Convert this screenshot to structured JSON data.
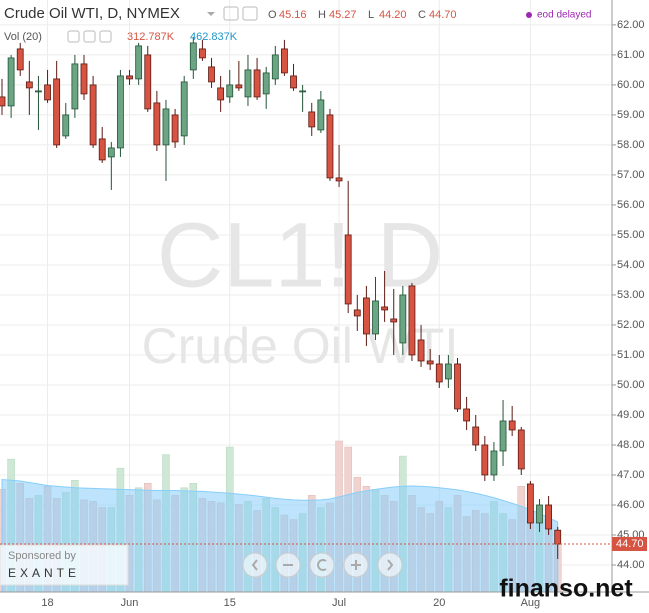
{
  "chart_data": {
    "type": "candlestick",
    "title": "Crude Oil WTI, D, NYMEX",
    "ohlc_legend": [
      {
        "key": "O",
        "value": "45.16"
      },
      {
        "key": "H",
        "value": "45.27"
      },
      {
        "key": "L",
        "value": "44.20"
      },
      {
        "key": "C",
        "value": "44.70"
      }
    ],
    "status": "eod delayed",
    "volume_legend": {
      "name": "Vol (20)",
      "volume": "312.787K",
      "average": "462.837K"
    },
    "watermark": {
      "symbol": "CL1! D",
      "name": "Crude Oil WTI"
    },
    "last_price_label": "44.70",
    "sponsor": {
      "caption": "Sponsored by",
      "name": "EXANTE"
    },
    "site_watermark": "finanso.net",
    "categories": [
      null,
      null,
      null,
      null,
      null,
      "18",
      null,
      null,
      null,
      null,
      null,
      null,
      null,
      null,
      "Jun",
      null,
      null,
      null,
      null,
      null,
      null,
      null,
      null,
      null,
      null,
      "15",
      null,
      null,
      null,
      null,
      null,
      null,
      null,
      null,
      null,
      null,
      null,
      "Jul",
      null,
      null,
      null,
      null,
      null,
      null,
      null,
      null,
      null,
      null,
      "20",
      null,
      null,
      null,
      null,
      null,
      null,
      null,
      null,
      null,
      "Aug",
      null,
      null,
      null
    ],
    "open": [
      59.6,
      59.3,
      61.2,
      60.1,
      59.8,
      60.0,
      60.2,
      58.3,
      59.2,
      60.7,
      60.0,
      58.2,
      57.6,
      57.9,
      60.3,
      60.2,
      61.0,
      59.4,
      58.0,
      59.0,
      58.3,
      60.5,
      61.2,
      60.6,
      59.9,
      59.6,
      60.0,
      59.6,
      60.5,
      59.7,
      60.2,
      61.2,
      60.3,
      59.8,
      59.1,
      58.5,
      59.0,
      56.9,
      55.0,
      52.5,
      52.9,
      51.7,
      52.6,
      52.2,
      51.4,
      53.3,
      51.5,
      50.8,
      50.7,
      50.2,
      50.7,
      49.2,
      48.6,
      48.0,
      47.0,
      47.8,
      48.8,
      48.5,
      46.7,
      45.4,
      46.0,
      45.16
    ],
    "high": [
      60.2,
      61.0,
      61.4,
      60.8,
      60.3,
      60.5,
      60.8,
      59.4,
      61.0,
      61.0,
      60.3,
      58.6,
      58.1,
      60.5,
      60.5,
      61.4,
      61.3,
      59.8,
      59.5,
      59.2,
      60.3,
      61.6,
      61.5,
      60.9,
      60.3,
      60.5,
      60.8,
      61.0,
      60.9,
      60.6,
      61.3,
      61.5,
      60.7,
      60.0,
      59.4,
      59.8,
      59.2,
      58.0,
      56.8,
      53.0,
      53.3,
      53.6,
      53.8,
      53.2,
      53.3,
      53.4,
      52.0,
      51.2,
      51.0,
      51.0,
      50.9,
      49.6,
      49.0,
      48.3,
      48.1,
      49.5,
      49.3,
      48.6,
      46.8,
      46.2,
      46.3,
      45.27
    ],
    "low": [
      59.0,
      58.9,
      60.3,
      59.0,
      58.5,
      59.4,
      57.9,
      58.2,
      58.9,
      59.5,
      57.9,
      57.4,
      56.5,
      57.6,
      60.0,
      60.0,
      59.1,
      57.8,
      56.8,
      57.9,
      58.0,
      60.2,
      60.8,
      59.9,
      59.1,
      59.4,
      59.8,
      59.3,
      59.5,
      59.2,
      60.0,
      60.3,
      59.8,
      59.1,
      58.3,
      58.4,
      56.8,
      56.6,
      52.4,
      51.8,
      51.3,
      51.5,
      52.1,
      51.0,
      51.0,
      50.8,
      50.6,
      50.5,
      49.9,
      49.9,
      49.1,
      48.5,
      47.8,
      46.8,
      46.8,
      47.3,
      48.3,
      47.0,
      45.2,
      45.1,
      45.0,
      44.2
    ],
    "close": [
      59.3,
      60.9,
      60.5,
      59.9,
      59.8,
      59.5,
      58.0,
      59.0,
      60.7,
      59.7,
      58.0,
      57.5,
      57.9,
      60.3,
      60.2,
      61.3,
      59.2,
      58.0,
      59.2,
      58.1,
      60.1,
      61.4,
      60.9,
      60.1,
      59.5,
      60.0,
      59.9,
      60.5,
      59.6,
      60.4,
      61.0,
      60.4,
      59.9,
      59.8,
      58.6,
      59.5,
      56.9,
      56.8,
      52.7,
      52.3,
      51.7,
      52.8,
      52.5,
      52.1,
      53.0,
      51.0,
      50.8,
      50.7,
      50.1,
      50.7,
      49.2,
      48.8,
      48.0,
      47.0,
      47.8,
      48.8,
      48.5,
      47.2,
      45.4,
      46.0,
      45.2,
      44.7
    ],
    "volume": [
      680,
      880,
      720,
      620,
      640,
      700,
      620,
      660,
      740,
      610,
      600,
      560,
      560,
      820,
      640,
      690,
      720,
      610,
      910,
      640,
      690,
      720,
      620,
      600,
      590,
      960,
      580,
      600,
      540,
      620,
      560,
      510,
      480,
      520,
      640,
      560,
      590,
      1000,
      960,
      760,
      700,
      680,
      640,
      600,
      900,
      640,
      560,
      520,
      600,
      560,
      640,
      500,
      540,
      520,
      600,
      520,
      480,
      700,
      480,
      470,
      480,
      312.787
    ],
    "volume_ma": [
      745,
      740,
      735,
      725,
      715,
      705,
      700,
      695,
      690,
      688,
      686,
      684,
      682,
      680,
      678,
      676,
      674,
      672,
      672,
      672,
      670,
      668,
      666,
      662,
      658,
      654,
      648,
      642,
      636,
      628,
      620,
      614,
      610,
      608,
      608,
      610,
      616,
      630,
      645,
      660,
      670,
      680,
      688,
      695,
      700,
      702,
      700,
      696,
      690,
      684,
      676,
      666,
      654,
      640,
      624,
      606,
      588,
      568,
      545,
      520,
      492,
      462.837
    ],
    "volume_lim": [
      0,
      1000
    ],
    "ylim": [
      43.1,
      62.83
    ],
    "yticks": [
      {
        "value": 44,
        "label": "44.00"
      },
      {
        "value": 45,
        "label": "45.00"
      },
      {
        "value": 46,
        "label": "46.00"
      },
      {
        "value": 47,
        "label": "47.00"
      },
      {
        "value": 48,
        "label": "48.00"
      },
      {
        "value": 49,
        "label": "49.00"
      },
      {
        "value": 50,
        "label": "50.00"
      },
      {
        "value": 51,
        "label": "51.00"
      },
      {
        "value": 52,
        "label": "52.00"
      },
      {
        "value": 53,
        "label": "53.00"
      },
      {
        "value": 54,
        "label": "54.00"
      },
      {
        "value": 55,
        "label": "55.00"
      },
      {
        "value": 56,
        "label": "56.00"
      },
      {
        "value": 57,
        "label": "57.00"
      },
      {
        "value": 58,
        "label": "58.00"
      },
      {
        "value": 59,
        "label": "59.00"
      },
      {
        "value": 60,
        "label": "60.00"
      },
      {
        "value": 61,
        "label": "61.00"
      },
      {
        "value": 62,
        "label": "62.00"
      }
    ],
    "grid": true,
    "up_color": "#6ba583",
    "down_color": "#d75442",
    "up_border": "#225437",
    "down_border": "#5b1a13",
    "volume_up_color": "#cfe8d6",
    "volume_down_color": "#f0d3d0",
    "volume_ma_color": "#87cefa",
    "last_price_color": "#d75442"
  }
}
